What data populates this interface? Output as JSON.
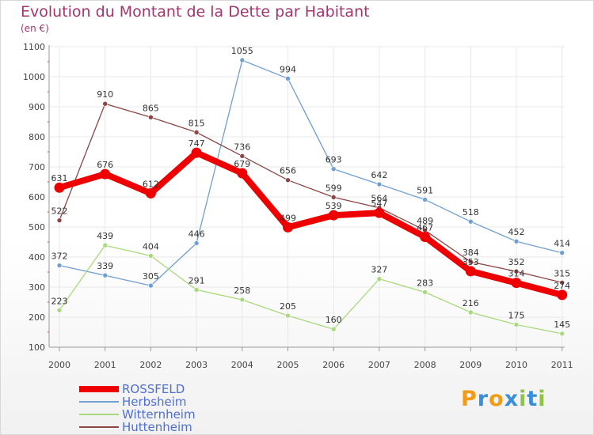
{
  "colors": {
    "title": "#a2356e",
    "legend_text": "#4f6fd0",
    "grid": "#e8e8e8",
    "axis_text": "#444444",
    "value_label": "#333333"
  },
  "chart_data": {
    "type": "line",
    "title": "Evolution du Montant de la Dette par Habitant",
    "subtitle": "(en €)",
    "xlabel": "",
    "ylabel": "",
    "ylim": [
      100,
      1100
    ],
    "yticks": [
      "100",
      "200",
      "300",
      "400",
      "500",
      "600",
      "700",
      "800",
      "900",
      "1000",
      "1100"
    ],
    "grid": true,
    "legend_position": "bottom-left",
    "categories": [
      "2000",
      "2001",
      "2002",
      "2003",
      "2004",
      "2005",
      "2006",
      "2007",
      "2008",
      "2009",
      "2010",
      "2011"
    ],
    "series": [
      {
        "name": "ROSSFELD",
        "color": "#ee0000",
        "values": [
          631,
          676,
          612,
          747,
          679,
          499,
          539,
          547,
          467,
          353,
          314,
          274
        ],
        "labels": [
          "631",
          "676",
          "612",
          "747",
          "679",
          "499",
          "539",
          "547",
          "467",
          "353",
          "314",
          "274"
        ]
      },
      {
        "name": "Herbsheim",
        "color": "#6f9fd3",
        "values": [
          372,
          339,
          305,
          446,
          1055,
          994,
          693,
          642,
          591,
          518,
          452,
          414
        ],
        "labels": [
          "372",
          "339",
          "305",
          "446",
          "1055",
          "994",
          "693",
          "642",
          "591",
          "518",
          "452",
          "414"
        ]
      },
      {
        "name": "Witternheim",
        "color": "#a9d97b",
        "values": [
          223,
          439,
          404,
          291,
          258,
          205,
          160,
          327,
          283,
          216,
          175,
          145
        ],
        "labels": [
          "223",
          "439",
          "404",
          "291",
          "258",
          "205",
          "160",
          "327",
          "283",
          "216",
          "175",
          "145"
        ]
      },
      {
        "name": "Huttenheim",
        "color": "#8c4545",
        "values": [
          522,
          910,
          865,
          815,
          736,
          656,
          599,
          564,
          489,
          384,
          352,
          315
        ],
        "labels": [
          "522",
          "910",
          "865",
          "815",
          "736",
          "656",
          "599",
          "564",
          "489",
          "384",
          "352",
          "315"
        ]
      }
    ]
  },
  "logo": {
    "text": "Proxiti",
    "letters": [
      {
        "char": "P",
        "color": "#f39c12"
      },
      {
        "char": "r",
        "color": "#3a8fd9"
      },
      {
        "char": "o",
        "color": "#f39c12"
      },
      {
        "char": "x",
        "color": "#3a8fd9"
      },
      {
        "char": "i",
        "color": "#8cc43f"
      },
      {
        "char": "t",
        "color": "#3a8fd9"
      },
      {
        "char": "i",
        "color": "#8cc43f"
      }
    ]
  }
}
